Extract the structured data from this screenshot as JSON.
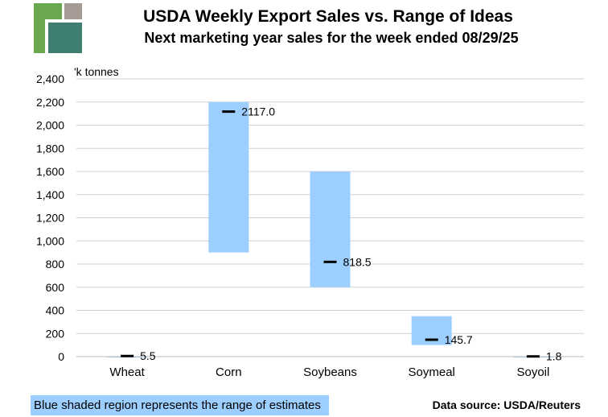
{
  "colors": {
    "range_fill": "#9ccfff",
    "actual_mark": "#000000",
    "grid": "#d0d0d0",
    "logo_green": "#6aa84f",
    "logo_teal": "#3f7f72",
    "logo_gray": "#a69a94"
  },
  "footer": {
    "note": "Blue shaded region represents the range of estimates",
    "source": "Data source: USDA/Reuters"
  },
  "chart_data": {
    "type": "range-bar",
    "title": "USDA Weekly Export Sales vs. Range of Ideas",
    "subtitle": "Next marketing year sales for the week ended 08/29/25",
    "ylabel": "'k tonnes",
    "ylim": [
      0,
      2400
    ],
    "ytick_step": 200,
    "yticks": [
      "0",
      "200",
      "400",
      "600",
      "800",
      "1,000",
      "1,200",
      "1,400",
      "1,600",
      "1,800",
      "2,000",
      "2,200",
      "2,400"
    ],
    "categories": [
      "Wheat",
      "Corn",
      "Soybeans",
      "Soymeal",
      "Soyoil"
    ],
    "range_low": [
      0,
      900,
      600,
      100,
      0
    ],
    "range_high": [
      0,
      2200,
      1600,
      350,
      0
    ],
    "actual": [
      5.5,
      2117.0,
      818.5,
      145.7,
      1.8
    ],
    "actual_labels": [
      "5.5",
      "2117.0",
      "818.5",
      "145.7",
      "1.8"
    ],
    "grid": true
  }
}
